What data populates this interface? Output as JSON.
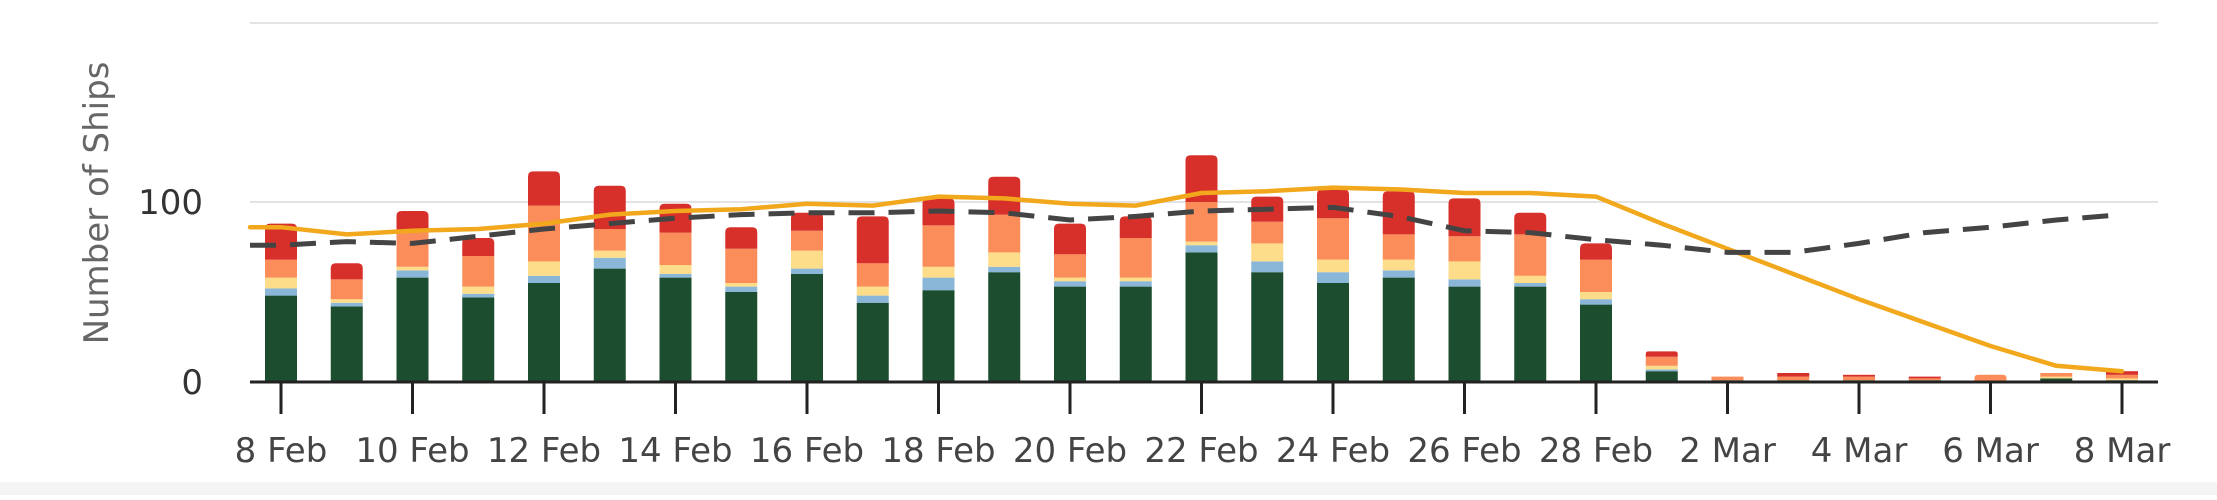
{
  "chart_data": {
    "type": "bar",
    "title": "",
    "ylabel": "Number of Ships",
    "xlabel": "",
    "ylim": [
      0,
      200
    ],
    "y_ticks": [
      {
        "value": 0,
        "label": "0"
      },
      {
        "value": 100,
        "label": "100"
      }
    ],
    "grid": "horizontal",
    "categories": [
      "8 Feb",
      "9 Feb",
      "10 Feb",
      "11 Feb",
      "12 Feb",
      "13 Feb",
      "14 Feb",
      "15 Feb",
      "16 Feb",
      "17 Feb",
      "18 Feb",
      "19 Feb",
      "20 Feb",
      "21 Feb",
      "22 Feb",
      "23 Feb",
      "24 Feb",
      "25 Feb",
      "26 Feb",
      "27 Feb",
      "28 Feb",
      "1 Mar",
      "2 Mar",
      "3 Mar",
      "4 Mar",
      "5 Mar",
      "6 Mar",
      "7 Mar",
      "8 Mar"
    ],
    "x_tick_labels": [
      "8 Feb",
      "10 Feb",
      "12 Feb",
      "14 Feb",
      "16 Feb",
      "18 Feb",
      "20 Feb",
      "22 Feb",
      "24 Feb",
      "26 Feb",
      "28 Feb",
      "2 Mar",
      "4 Mar",
      "6 Mar",
      "8 Mar"
    ],
    "stack_series": [
      {
        "color": "#1b4d2e",
        "values": [
          48,
          42,
          58,
          47,
          55,
          63,
          58,
          50,
          60,
          44,
          51,
          61,
          53,
          53,
          72,
          61,
          55,
          58,
          53,
          53,
          43,
          6,
          1,
          1,
          1,
          1,
          0,
          2,
          1
        ]
      },
      {
        "color": "#8ab7d7",
        "values": [
          4,
          2,
          4,
          2,
          4,
          6,
          2,
          3,
          3,
          4,
          7,
          3,
          3,
          3,
          4,
          6,
          6,
          4,
          4,
          2,
          3,
          1,
          0,
          0,
          0,
          0,
          0,
          0,
          0
        ]
      },
      {
        "color": "#fddc8a",
        "values": [
          6,
          2,
          2,
          4,
          8,
          4,
          5,
          2,
          10,
          5,
          6,
          8,
          2,
          2,
          2,
          10,
          7,
          6,
          10,
          4,
          4,
          2,
          0,
          0,
          0,
          0,
          0,
          1,
          1
        ]
      },
      {
        "color": "#fb8d5a",
        "values": [
          10,
          11,
          19,
          17,
          31,
          12,
          18,
          19,
          11,
          13,
          23,
          21,
          13,
          22,
          22,
          12,
          23,
          14,
          14,
          23,
          18,
          5,
          2,
          2,
          2,
          1,
          4,
          2,
          2
        ]
      },
      {
        "color": "#d7302a",
        "values": [
          20,
          9,
          12,
          10,
          19,
          24,
          16,
          12,
          10,
          26,
          15,
          21,
          17,
          12,
          26,
          14,
          16,
          24,
          21,
          12,
          9,
          3,
          0,
          2,
          1,
          1,
          0,
          0,
          2
        ]
      }
    ],
    "line_series": [
      {
        "style": "solid",
        "color": "#f2a81c",
        "values": [
          86,
          82,
          84,
          85,
          88,
          93,
          95,
          96,
          99,
          98,
          103,
          102,
          99,
          98,
          105,
          106,
          108,
          107,
          105,
          105,
          103,
          88,
          74,
          60,
          46,
          33,
          20,
          9,
          6
        ]
      },
      {
        "style": "dashed",
        "color": "#444444",
        "values": [
          76,
          78,
          77,
          81,
          85,
          88,
          91,
          93,
          94,
          94,
          95,
          94,
          90,
          92,
          95,
          96,
          97,
          92,
          84,
          83,
          79,
          76,
          72,
          72,
          77,
          83,
          86,
          90,
          93
        ]
      }
    ]
  }
}
